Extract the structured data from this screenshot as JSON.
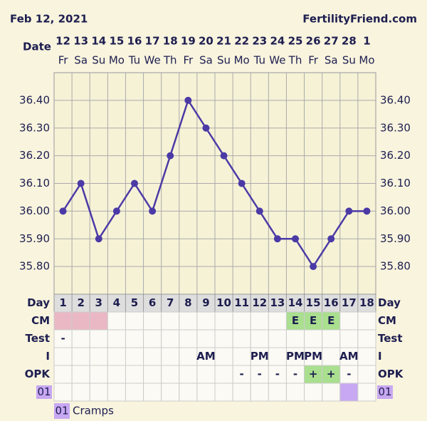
{
  "header": {
    "date": "Feb 12, 2021",
    "site": "FertilityFriend.com"
  },
  "chart_data": {
    "type": "line",
    "row_label": "Date",
    "categories": [
      "12",
      "13",
      "14",
      "15",
      "16",
      "17",
      "18",
      "19",
      "20",
      "21",
      "22",
      "23",
      "24",
      "25",
      "26",
      "27",
      "28",
      "1"
    ],
    "weekdays": [
      "Fr",
      "Sa",
      "Su",
      "Mo",
      "Tu",
      "We",
      "Th",
      "Fr",
      "Sa",
      "Su",
      "Mo",
      "Tu",
      "We",
      "Th",
      "Fr",
      "Sa",
      "Su",
      "Mo"
    ],
    "values": [
      36.0,
      36.1,
      35.9,
      36.0,
      36.1,
      36.0,
      36.2,
      36.4,
      36.3,
      36.2,
      36.1,
      36.0,
      35.9,
      35.9,
      35.8,
      35.9,
      36.0,
      36.0
    ],
    "color": "#4b3aa6",
    "ylim": [
      35.7,
      36.5
    ],
    "yticks": [
      {
        "value": 35.8,
        "label": "35.80"
      },
      {
        "value": 35.9,
        "label": "35.90"
      },
      {
        "value": 36.0,
        "label": "36.00"
      },
      {
        "value": 36.1,
        "label": "36.10"
      },
      {
        "value": 36.2,
        "label": "36.20"
      },
      {
        "value": 36.3,
        "label": "36.30"
      },
      {
        "value": 36.4,
        "label": "36.40"
      }
    ],
    "grid": true
  },
  "table": {
    "day_label": "Day",
    "days": [
      "1",
      "2",
      "3",
      "4",
      "5",
      "6",
      "7",
      "8",
      "9",
      "10",
      "11",
      "12",
      "13",
      "14",
      "15",
      "16",
      "17",
      "18"
    ],
    "rows": [
      {
        "label": "CM",
        "cells": [
          null,
          null,
          null,
          null,
          null,
          null,
          null,
          null,
          null,
          null,
          null,
          null,
          null,
          "E",
          "E",
          "E",
          null,
          null
        ],
        "fills": [
          "#eab8c4",
          "#eab8c4",
          "#eab8c4",
          null,
          null,
          null,
          null,
          null,
          null,
          null,
          null,
          null,
          null,
          "#a9df8e",
          "#a9df8e",
          "#a9df8e",
          null,
          null
        ]
      },
      {
        "label": "Test",
        "cells": [
          "-",
          null,
          null,
          null,
          null,
          null,
          null,
          null,
          null,
          null,
          null,
          null,
          null,
          null,
          null,
          null,
          null,
          null
        ],
        "fills": null
      },
      {
        "label": "I",
        "cells": [
          null,
          null,
          null,
          null,
          null,
          null,
          null,
          null,
          "AM",
          null,
          null,
          "PM",
          null,
          "PM",
          "PM",
          null,
          "AM",
          null
        ],
        "fills": null
      },
      {
        "label": "OPK",
        "cells": [
          null,
          null,
          null,
          null,
          null,
          null,
          null,
          null,
          null,
          null,
          "-",
          "-",
          "-",
          "-",
          "+",
          "+",
          "-",
          null
        ],
        "fills": [
          null,
          null,
          null,
          null,
          null,
          null,
          null,
          null,
          null,
          null,
          null,
          null,
          null,
          null,
          "#a9df8e",
          "#a9df8e",
          null,
          null
        ]
      },
      {
        "label": "01",
        "cells": null,
        "fills": [
          null,
          null,
          null,
          null,
          null,
          null,
          null,
          null,
          null,
          null,
          null,
          null,
          null,
          null,
          null,
          null,
          "#c8a8f2",
          null
        ]
      }
    ]
  },
  "legend": {
    "code": "01",
    "text": "Cramps"
  }
}
